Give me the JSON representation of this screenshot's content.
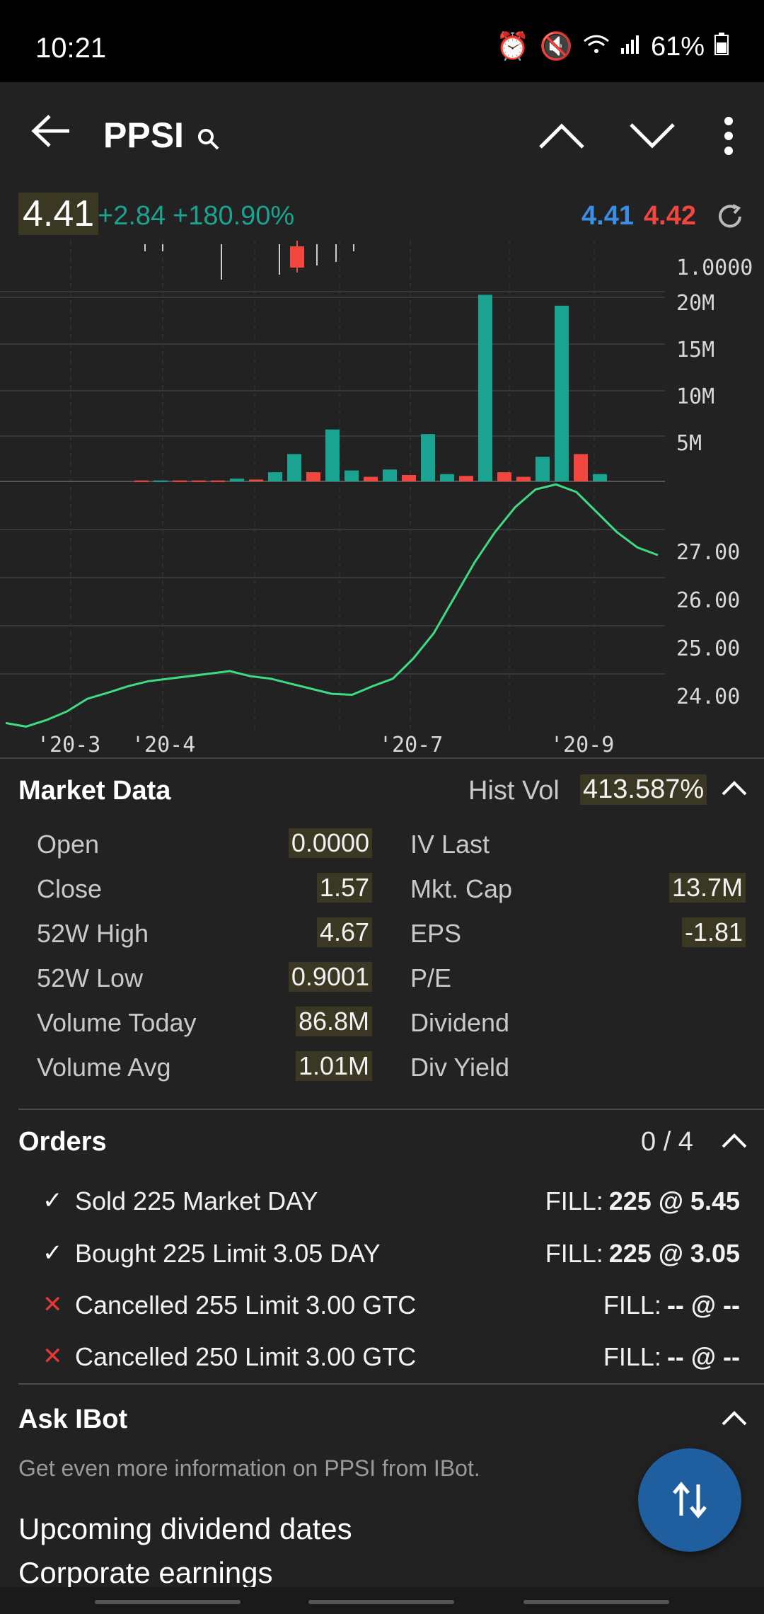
{
  "status": {
    "time": "10:21",
    "battery": "61%"
  },
  "header": {
    "symbol": "PPSI"
  },
  "quote": {
    "last": "4.41",
    "change": "+2.84",
    "change_pct": "+180.90%",
    "bid": "4.41",
    "ask": "4.42"
  },
  "chart_data": [
    {
      "type": "bar",
      "title": "",
      "yticks": [
        "20M",
        "15M",
        "10M",
        "5M"
      ],
      "ylim": [
        0,
        21
      ],
      "series": [
        {
          "values": [
            0.1,
            0.1,
            0.1,
            0.1,
            0.1,
            0.3,
            0.2,
            1.0,
            3.0,
            1.0,
            5.7,
            1.2,
            0.5,
            1.3,
            0.7,
            5.2,
            0.8,
            0.6,
            20.5,
            1.0,
            0.5,
            2.7,
            19.3,
            3.0,
            0.8
          ]
        }
      ],
      "colors": [
        "r",
        "g",
        "r",
        "r",
        "r",
        "g",
        "r",
        "g",
        "g",
        "r",
        "g",
        "g",
        "r",
        "g",
        "r",
        "g",
        "g",
        "r",
        "g",
        "r",
        "r",
        "g",
        "g",
        "r",
        "g"
      ]
    },
    {
      "type": "line",
      "yticks": [
        "27.00",
        "26.00",
        "25.00",
        "24.00"
      ],
      "ylim": [
        23.5,
        28.2
      ],
      "xticks": [
        "'20-3",
        "'20-4",
        "'20-7",
        "'20-9"
      ],
      "series": [
        {
          "values": [
            23.62,
            23.55,
            23.68,
            23.85,
            24.1,
            24.22,
            24.35,
            24.45,
            24.5,
            24.55,
            24.6,
            24.65,
            24.55,
            24.5,
            24.4,
            24.3,
            24.2,
            24.18,
            24.35,
            24.5,
            24.9,
            25.4,
            26.1,
            26.8,
            27.4,
            27.9,
            28.25,
            28.35,
            28.2,
            27.8,
            27.4,
            27.1,
            26.95
          ]
        }
      ],
      "color": "#3ddc84"
    }
  ],
  "candle_axis_label": "1.0000",
  "market_data": {
    "title": "Market Data",
    "hist_vol_label": "Hist Vol",
    "hist_vol_value": "413.587%",
    "left": [
      {
        "label": "Open",
        "value": "0.0000"
      },
      {
        "label": "Close",
        "value": "1.57"
      },
      {
        "label": "52W High",
        "value": "4.67"
      },
      {
        "label": "52W Low",
        "value": "0.9001"
      },
      {
        "label": "Volume Today",
        "value": "86.8M"
      },
      {
        "label": "Volume Avg",
        "value": "1.01M"
      }
    ],
    "right": [
      {
        "label": "IV Last",
        "value": ""
      },
      {
        "label": "Mkt. Cap",
        "value": "13.7M"
      },
      {
        "label": "EPS",
        "value": "-1.81"
      },
      {
        "label": "P/E",
        "value": ""
      },
      {
        "label": "Dividend",
        "value": ""
      },
      {
        "label": "Div Yield",
        "value": ""
      }
    ]
  },
  "orders": {
    "title": "Orders",
    "count": "0 / 4",
    "items": [
      {
        "mark": "✓",
        "status": "check",
        "desc": "Sold 225 Market DAY",
        "fill_label": "FILL:",
        "fill_value": "225 @ 5.45"
      },
      {
        "mark": "✓",
        "status": "check",
        "desc": "Bought 225 Limit 3.05 DAY",
        "fill_label": "FILL:",
        "fill_value": "225 @ 3.05"
      },
      {
        "mark": "✕",
        "status": "cancel",
        "desc": "Cancelled 255 Limit 3.00 GTC",
        "fill_label": "FILL:",
        "fill_value": "-- @ --"
      },
      {
        "mark": "✕",
        "status": "cancel",
        "desc": "Cancelled 250 Limit 3.00 GTC",
        "fill_label": "FILL:",
        "fill_value": "-- @ --"
      }
    ]
  },
  "ibot": {
    "title": "Ask IBot",
    "subtitle": "Get even more information on PPSI from IBot.",
    "links": [
      "Upcoming dividend dates",
      "Corporate earnings"
    ]
  },
  "colors": {
    "up": "#1aa391",
    "down": "#f2473f",
    "line": "#3ddc84",
    "bid": "#3a8ee6",
    "ask": "#f2473f",
    "fab": "#1f5fa0"
  }
}
